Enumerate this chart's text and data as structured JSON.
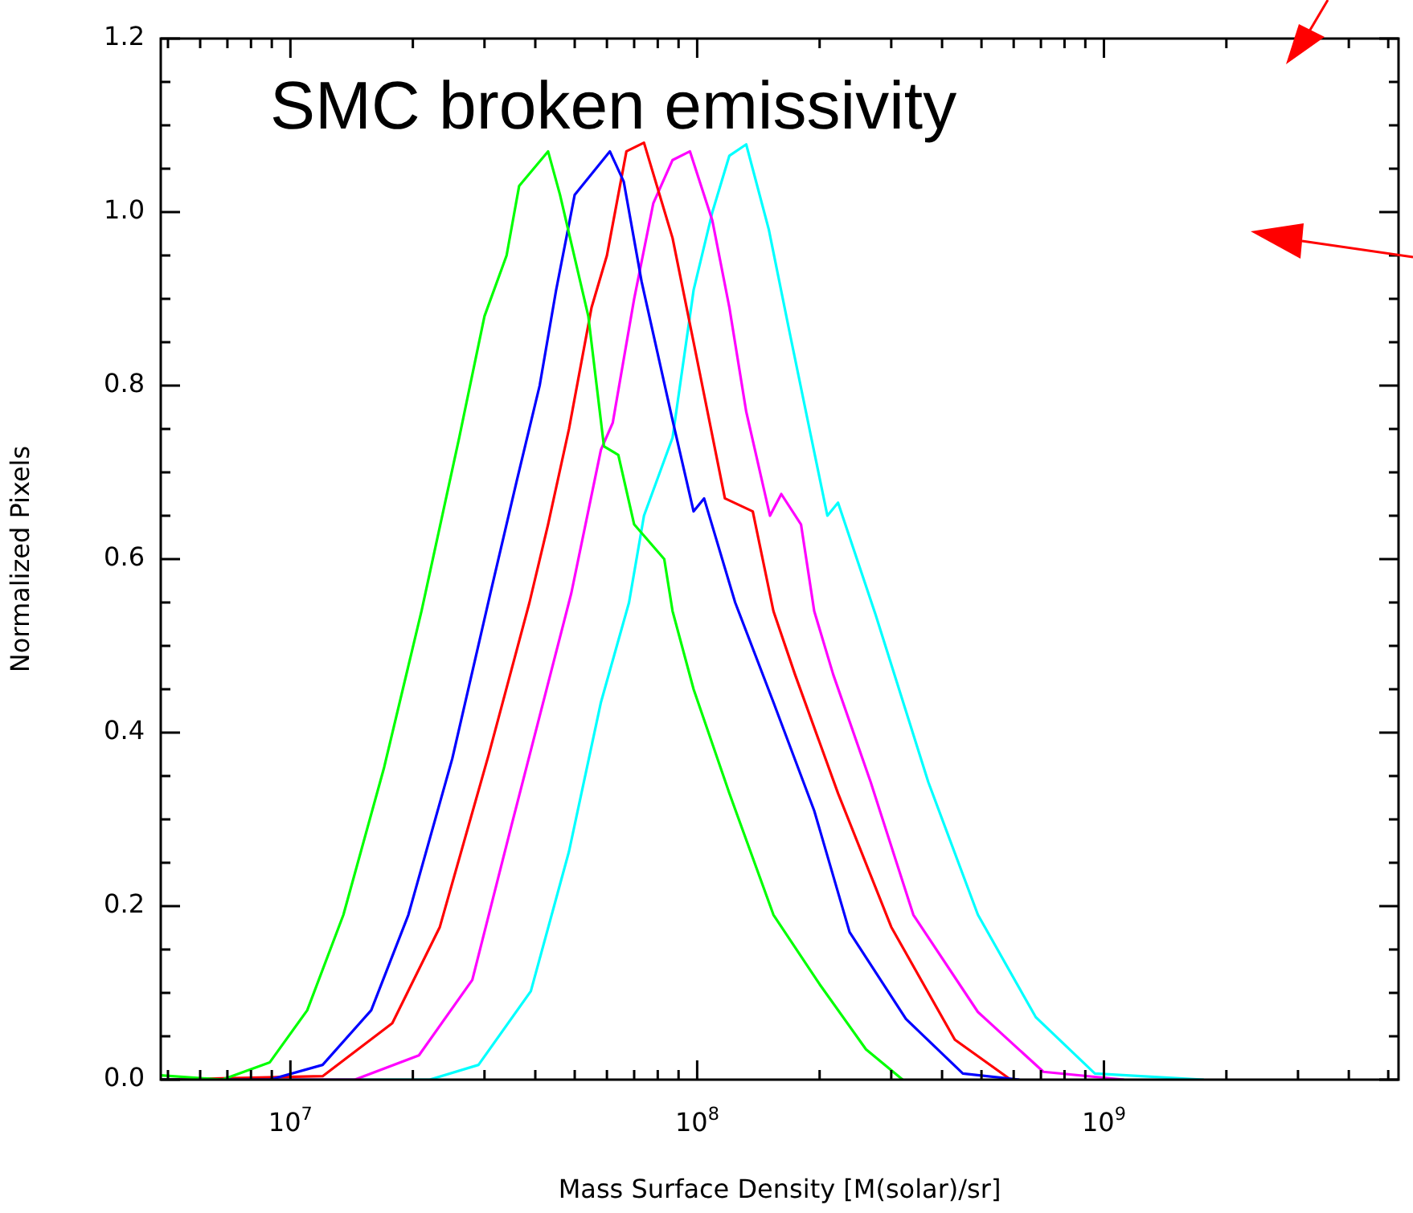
{
  "chart_data": {
    "type": "line",
    "title": "SMC broken emissivity",
    "xlabel": "Mass Surface Density [M(solar)/sr]",
    "ylabel": "Normalized Pixels",
    "log": "x",
    "grid": false,
    "legend": false,
    "marker": "none",
    "line_style": "solid",
    "xlim": [
      4800000.0,
      5300000000.0
    ],
    "xticks": [
      {
        "value": 5000000.0,
        "label": null
      },
      {
        "value": 6000000.0,
        "label": null
      },
      {
        "value": 7000000.0,
        "label": null
      },
      {
        "value": 8000000.0,
        "label": null
      },
      {
        "value": 9000000.0,
        "label": null
      },
      {
        "value": 10000000.0,
        "label": "10$^{7}$"
      },
      {
        "value": 20000000.0,
        "label": null
      },
      {
        "value": 30000000.0,
        "label": null
      },
      {
        "value": 40000000.0,
        "label": null
      },
      {
        "value": 50000000.0,
        "label": null
      },
      {
        "value": 60000000.0,
        "label": null
      },
      {
        "value": 70000000.0,
        "label": null
      },
      {
        "value": 80000000.0,
        "label": null
      },
      {
        "value": 90000000.0,
        "label": null
      },
      {
        "value": 100000000.0,
        "label": "10$^{8}$"
      },
      {
        "value": 200000000.0,
        "label": null
      },
      {
        "value": 300000000.0,
        "label": null
      },
      {
        "value": 400000000.0,
        "label": null
      },
      {
        "value": 500000000.0,
        "label": null
      },
      {
        "value": 600000000.0,
        "label": null
      },
      {
        "value": 700000000.0,
        "label": null
      },
      {
        "value": 800000000.0,
        "label": null
      },
      {
        "value": 900000000.0,
        "label": null
      },
      {
        "value": 1000000000.0,
        "label": "10$^{9}$"
      },
      {
        "value": 2000000000.0,
        "label": null
      },
      {
        "value": 3000000000.0,
        "label": null
      },
      {
        "value": 4000000000.0,
        "label": null
      },
      {
        "value": 5000000000.0,
        "label": null
      }
    ],
    "ylim": [
      0,
      1.2
    ],
    "yticks": [
      {
        "value": 0,
        "label": "0.0"
      },
      {
        "value": 0.05,
        "label": null
      },
      {
        "value": 0.1,
        "label": null
      },
      {
        "value": 0.15,
        "label": null
      },
      {
        "value": 0.2,
        "label": "0.2"
      },
      {
        "value": 0.25,
        "label": null
      },
      {
        "value": 0.3,
        "label": null
      },
      {
        "value": 0.35,
        "label": null
      },
      {
        "value": 0.4,
        "label": "0.4"
      },
      {
        "value": 0.45,
        "label": null
      },
      {
        "value": 0.5,
        "label": null
      },
      {
        "value": 0.55,
        "label": null
      },
      {
        "value": 0.6,
        "label": "0.6"
      },
      {
        "value": 0.65,
        "label": null
      },
      {
        "value": 0.7,
        "label": null
      },
      {
        "value": 0.75,
        "label": null
      },
      {
        "value": 0.8,
        "label": "0.8"
      },
      {
        "value": 0.85,
        "label": null
      },
      {
        "value": 0.9,
        "label": null
      },
      {
        "value": 0.95,
        "label": null
      },
      {
        "value": 1.0,
        "label": "1.0"
      },
      {
        "value": 1.05,
        "label": null
      },
      {
        "value": 1.1,
        "label": null
      },
      {
        "value": 1.15,
        "label": null
      },
      {
        "value": 1.2,
        "label": "1.2"
      }
    ],
    "series": [
      {
        "color": "#00ff00",
        "x": [
          4800000.0,
          6800000.0,
          8900000.0,
          11000000.0,
          13500000.0,
          17000000.0,
          21000000.0,
          26000000.0,
          30000000.0,
          34000000.0,
          36500000.0,
          43000000.0,
          46000000.0,
          54000000.0,
          59000000.0,
          64000000.0,
          70000000.0,
          83000000.0,
          87000000.0,
          98000000.0,
          120000000.0,
          154000000.0,
          200000000.0,
          260000000.0,
          320000000.0
        ],
        "values": [
          0.005,
          0,
          0.02,
          0.08,
          0.19,
          0.36,
          0.54,
          0.74,
          0.88,
          0.95,
          1.03,
          1.07,
          1.02,
          0.88,
          0.73,
          0.72,
          0.64,
          0.6,
          0.54,
          0.45,
          0.33,
          0.19,
          0.11,
          0.035,
          0
        ]
      },
      {
        "color": "#0000ff",
        "x": [
          4800000.0,
          8900000.0,
          12000000.0,
          15800000.0,
          19500000.0,
          25000000.0,
          31000000.0,
          36000000.0,
          41000000.0,
          45000000.0,
          50000000.0,
          61000000.0,
          66000000.0,
          73000000.0,
          87000000.0,
          98000000.0,
          104000000.0,
          124000000.0,
          154000000.0,
          194000000.0,
          237000000.0,
          326000000.0,
          450000000.0,
          620000000.0
        ],
        "values": [
          0,
          0,
          0.017,
          0.08,
          0.19,
          0.37,
          0.56,
          0.69,
          0.8,
          0.91,
          1.02,
          1.07,
          1.035,
          0.92,
          0.76,
          0.655,
          0.67,
          0.55,
          0.435,
          0.31,
          0.17,
          0.07,
          0.007,
          0
        ]
      },
      {
        "color": "#ff0000",
        "x": [
          4800000.0,
          12000000.0,
          17800000.0,
          23300000.0,
          30700000.0,
          38700000.0,
          43000000.0,
          48400000.0,
          55000000.0,
          60000000.0,
          67000000.0,
          74000000.0,
          87000000.0,
          98000000.0,
          117000000.0,
          137000000.0,
          154000000.0,
          174000000.0,
          222000000.0,
          300000000.0,
          430000000.0,
          590000000.0
        ],
        "values": [
          0,
          0.004,
          0.065,
          0.176,
          0.374,
          0.55,
          0.64,
          0.75,
          0.89,
          0.95,
          1.07,
          1.08,
          0.97,
          0.85,
          0.67,
          0.655,
          0.54,
          0.467,
          0.33,
          0.176,
          0.046,
          0
        ]
      },
      {
        "color": "#ff00ff",
        "x": [
          4800000.0,
          14400000.0,
          20700000.0,
          28000000.0,
          35000000.0,
          49000000.0,
          58000000.0,
          62000000.0,
          70000000.0,
          78000000.0,
          87000000.0,
          96000000.0,
          109000000.0,
          120000000.0,
          132000000.0,
          151000000.0,
          161000000.0,
          180000000.0,
          194000000.0,
          216000000.0,
          267000000.0,
          340000000.0,
          490000000.0,
          710000000.0,
          1120000000.0
        ],
        "values": [
          0,
          0,
          0.028,
          0.115,
          0.294,
          0.56,
          0.726,
          0.757,
          0.9,
          1.01,
          1.06,
          1.07,
          0.99,
          0.89,
          0.77,
          0.65,
          0.675,
          0.64,
          0.54,
          0.467,
          0.343,
          0.19,
          0.078,
          0.009,
          0
        ]
      },
      {
        "color": "#00ffff",
        "x": [
          4800000.0,
          22000000.0,
          29000000.0,
          39000000.0,
          48400000.0,
          58000000.0,
          68000000.0,
          74000000.0,
          87000000.0,
          98000000.0,
          109000000.0,
          120000000.0,
          132000000.0,
          150000000.0,
          169000000.0,
          190000000.0,
          209000000.0,
          222000000.0,
          275000000.0,
          370000000.0,
          490000000.0,
          680000000.0,
          950000000.0,
          1760000000.0
        ],
        "values": [
          0,
          0,
          0.017,
          0.102,
          0.263,
          0.435,
          0.55,
          0.65,
          0.74,
          0.91,
          1.0,
          1.065,
          1.078,
          0.98,
          0.86,
          0.744,
          0.65,
          0.665,
          0.535,
          0.343,
          0.19,
          0.072,
          0.007,
          0
        ]
      }
    ]
  }
}
